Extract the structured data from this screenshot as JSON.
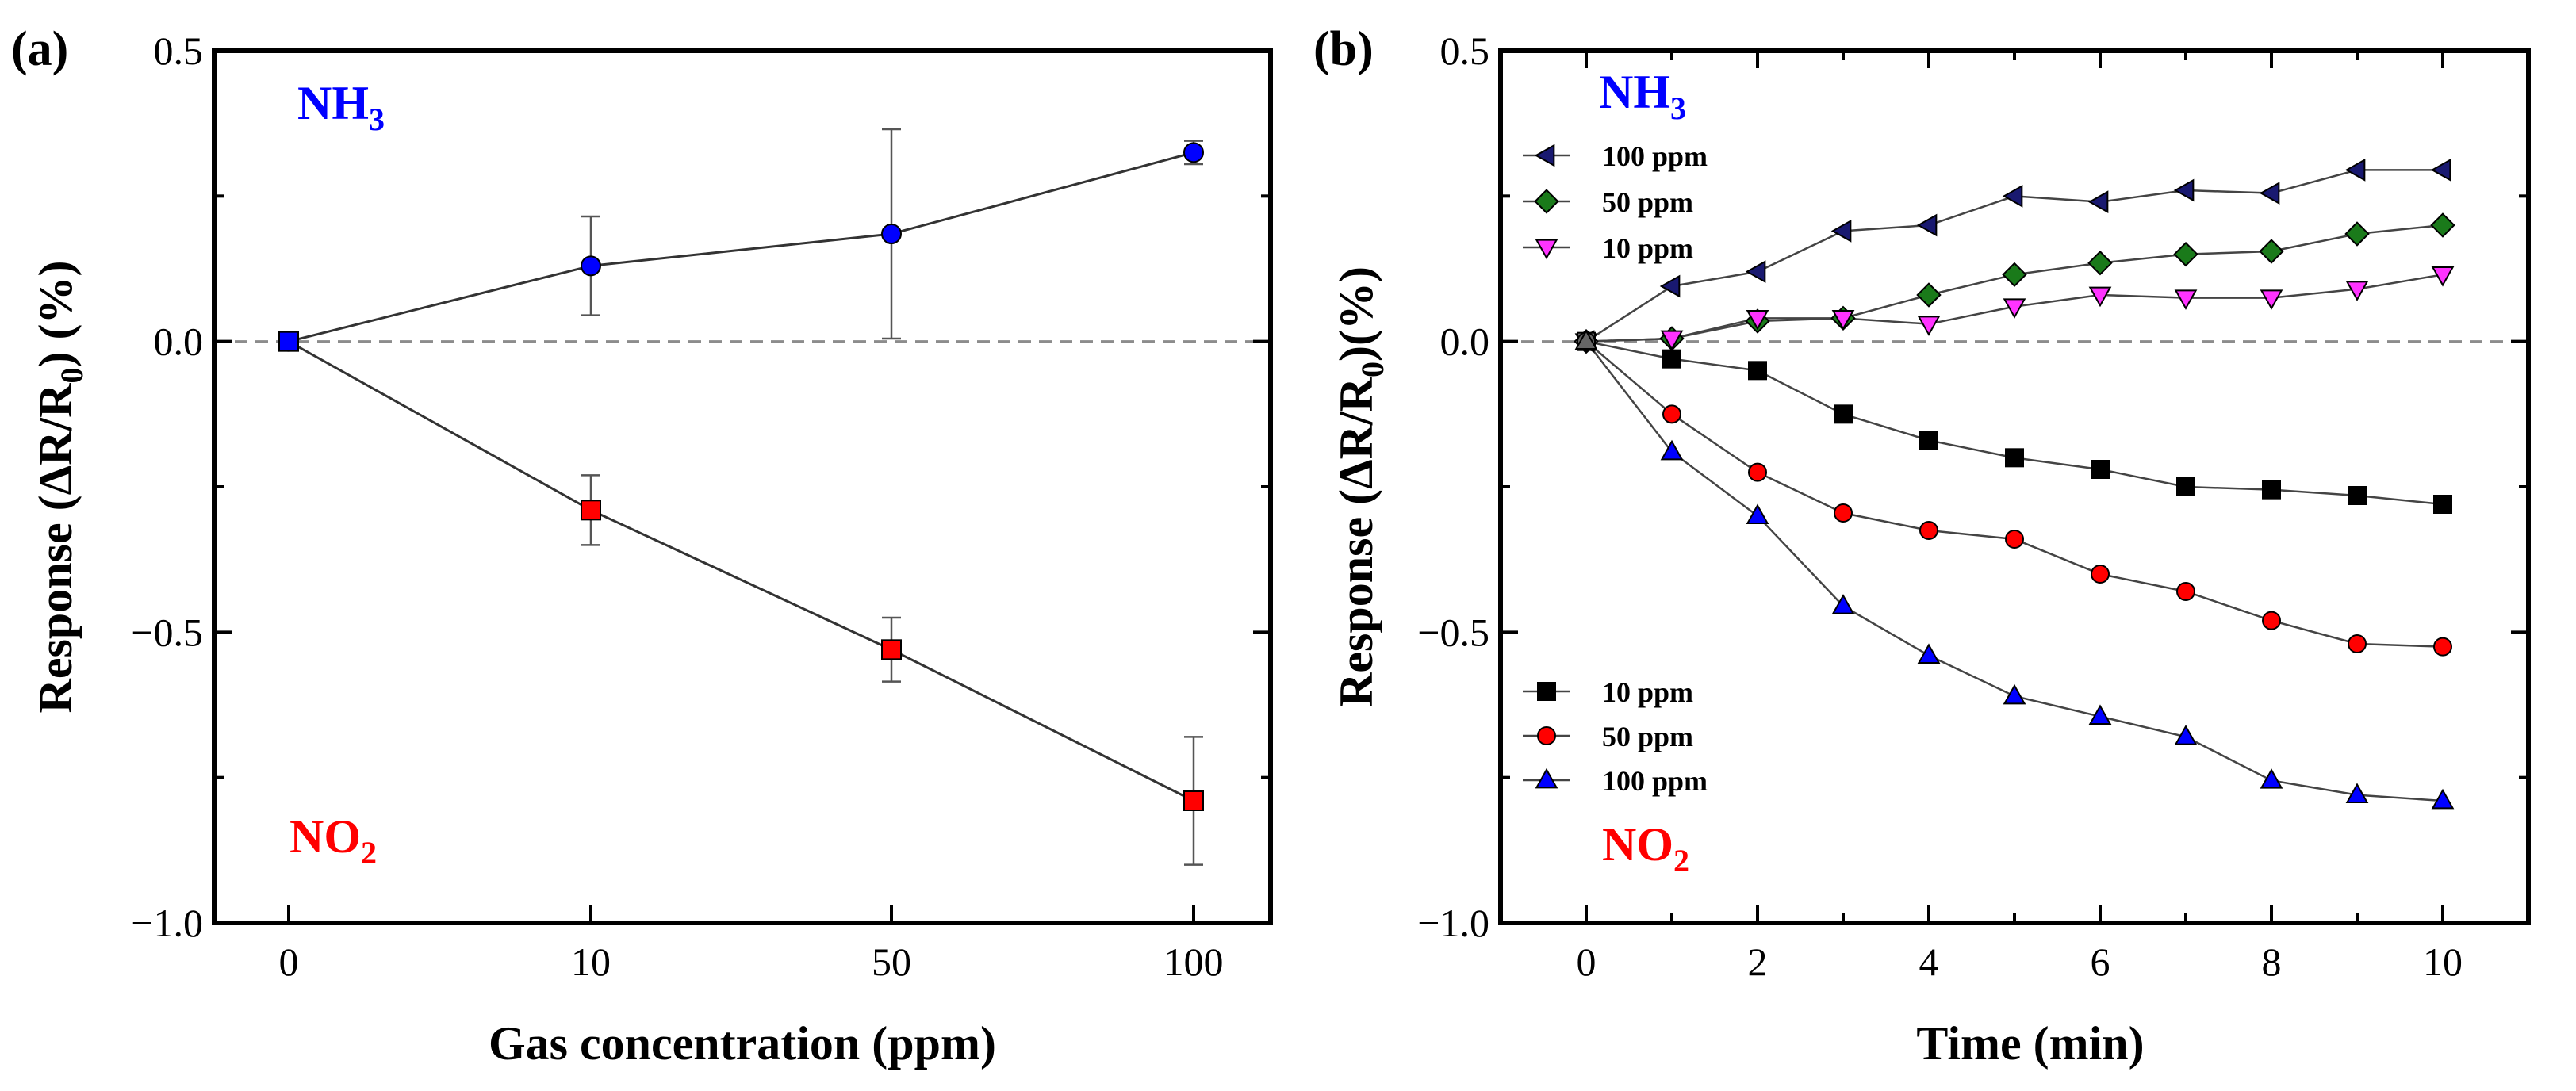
{
  "colors": {
    "nh3": "#0000ff",
    "no2": "#ff0000",
    "ammonia_100": "#191970",
    "ammonia_50": "#1a7a1a",
    "ammonia_10": "#ff33ff",
    "nitrogen_10": "#000000",
    "nitrogen_50": "#ff0000",
    "nitrogen_100": "#0000ff"
  },
  "chart_data": [
    {
      "type": "line",
      "panel_label": "(a)",
      "xlabel": "Gas concentration (ppm)",
      "ylabel": "Response (ΔR/R0) (%)",
      "ylabel_parts": {
        "pre": "Response (ΔR/R",
        "sub": "0",
        "post": ") (%)"
      },
      "categories": [
        "0",
        "10",
        "50",
        "100"
      ],
      "ylim": [
        -1.0,
        0.5
      ],
      "yticks": [
        0.5,
        0.0,
        -0.5,
        -1.0
      ],
      "ytick_labels": [
        "0.5",
        "0.0",
        "−0.5",
        "−1.0"
      ],
      "zero_line": true,
      "annotations": [
        {
          "text": "NH3",
          "base": "NH",
          "sub": "3",
          "color": "#0000ff",
          "position": "top-left"
        },
        {
          "text": "NO2",
          "base": "NO",
          "sub": "2",
          "color": "#ff0000",
          "position": "bottom-left"
        }
      ],
      "series": [
        {
          "name": "NH3",
          "marker": "circle",
          "color": "#0000ff",
          "values": [
            0.0,
            0.13,
            0.185,
            0.325
          ],
          "error": [
            0.0,
            0.085,
            0.18,
            0.02
          ]
        },
        {
          "name": "NO2",
          "marker": "square",
          "color": "#ff0000",
          "values": [
            0.0,
            -0.29,
            -0.53,
            -0.79
          ],
          "error": [
            0.0,
            0.06,
            0.055,
            0.11
          ]
        }
      ]
    },
    {
      "type": "line",
      "panel_label": "(b)",
      "xlabel": "Time (min)",
      "ylabel": "Response (ΔR/R0)(%)",
      "ylabel_parts": {
        "pre": "Response (ΔR/R",
        "sub": "0",
        "post": ")(%)"
      },
      "x": [
        0,
        1,
        2,
        3,
        4,
        5,
        6,
        7,
        8,
        9,
        10
      ],
      "xlim": [
        -1,
        11
      ],
      "xticks": [
        0,
        2,
        4,
        6,
        8,
        10
      ],
      "xtick_labels": [
        "0",
        "2",
        "4",
        "6",
        "8",
        "10"
      ],
      "ylim": [
        -1.0,
        0.5
      ],
      "yticks": [
        0.5,
        0.0,
        -0.5,
        -1.0
      ],
      "ytick_labels": [
        "0.5",
        "0.0",
        "−0.5",
        "−1.0"
      ],
      "zero_line": true,
      "annotations": [
        {
          "text": "NH3",
          "base": "NH",
          "sub": "3",
          "color": "#0000ff",
          "position": "top-left"
        },
        {
          "text": "NO2",
          "base": "NO",
          "sub": "2",
          "color": "#ff0000",
          "position": "bottom-left"
        }
      ],
      "legends": [
        {
          "group": "NH3",
          "placement": "top-left",
          "entries": [
            {
              "label": "100 ppm",
              "marker": "triangle-left",
              "color": "#191970"
            },
            {
              "label": "50 ppm",
              "marker": "diamond",
              "color": "#1a7a1a"
            },
            {
              "label": "10 ppm",
              "marker": "triangle-down",
              "color": "#ff33ff"
            }
          ]
        },
        {
          "group": "NO2",
          "placement": "bottom-left",
          "entries": [
            {
              "label": "10 ppm",
              "marker": "square",
              "color": "#000000"
            },
            {
              "label": "50 ppm",
              "marker": "circle",
              "color": "#ff0000"
            },
            {
              "label": "100 ppm",
              "marker": "triangle-up",
              "color": "#0000ff"
            }
          ]
        }
      ],
      "series": [
        {
          "name": "NH3 100 ppm",
          "marker": "triangle-left",
          "color": "#191970",
          "values": [
            0.0,
            0.095,
            0.12,
            0.19,
            0.2,
            0.25,
            0.24,
            0.26,
            0.255,
            0.295,
            0.295
          ]
        },
        {
          "name": "NH3 50 ppm",
          "marker": "diamond",
          "color": "#1a7a1a",
          "values": [
            0.0,
            0.005,
            0.035,
            0.04,
            0.08,
            0.115,
            0.135,
            0.15,
            0.155,
            0.185,
            0.2
          ]
        },
        {
          "name": "NH3 10 ppm",
          "marker": "triangle-down",
          "color": "#ff33ff",
          "values": [
            0.0,
            0.005,
            0.04,
            0.04,
            0.03,
            0.06,
            0.08,
            0.075,
            0.075,
            0.09,
            0.115
          ]
        },
        {
          "name": "NO2 10 ppm",
          "marker": "square",
          "color": "#000000",
          "values": [
            0.0,
            -0.03,
            -0.05,
            -0.125,
            -0.17,
            -0.2,
            -0.22,
            -0.25,
            -0.255,
            -0.265,
            -0.28
          ]
        },
        {
          "name": "NO2 50 ppm",
          "marker": "circle",
          "color": "#ff0000",
          "values": [
            0.0,
            -0.125,
            -0.225,
            -0.295,
            -0.325,
            -0.34,
            -0.4,
            -0.43,
            -0.48,
            -0.52,
            -0.525
          ]
        },
        {
          "name": "NO2 100 ppm",
          "marker": "triangle-up",
          "color": "#0000ff",
          "values": [
            0.0,
            -0.19,
            -0.3,
            -0.455,
            -0.54,
            -0.61,
            -0.645,
            -0.68,
            -0.755,
            -0.78,
            -0.79
          ]
        }
      ]
    }
  ]
}
